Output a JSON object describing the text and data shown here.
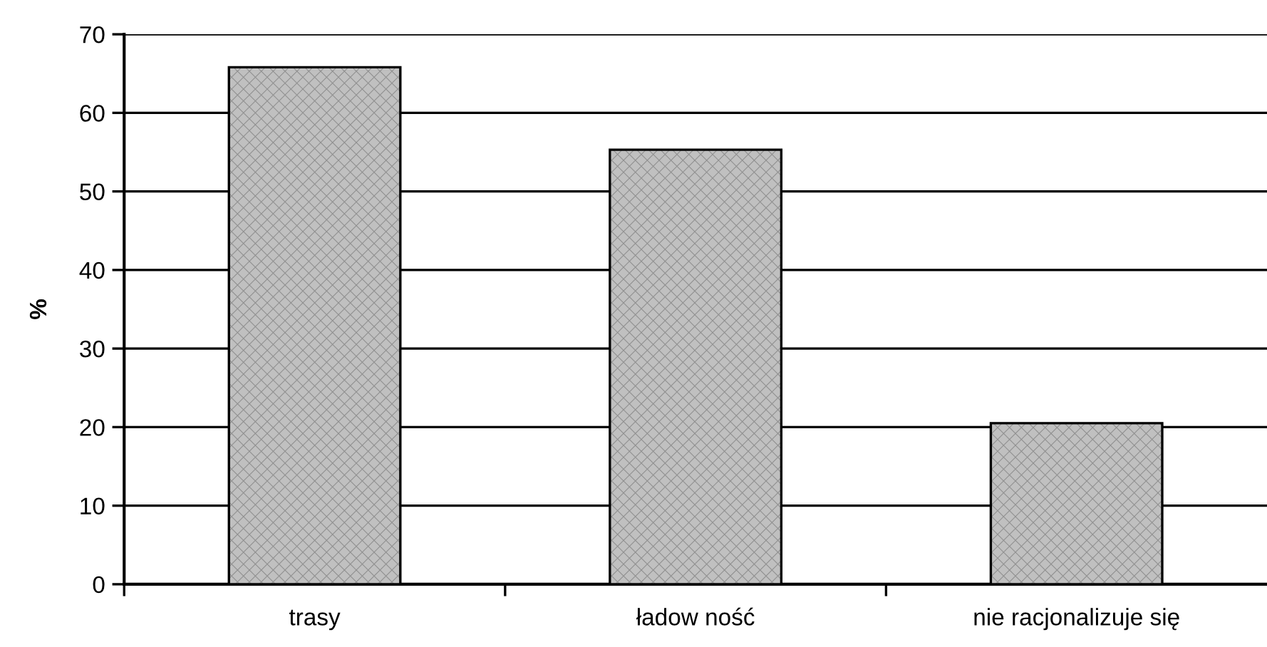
{
  "chart_data": {
    "type": "bar",
    "ylabel": "%",
    "categories": [
      "trasy",
      "ładow ność",
      "nie racjonalizuje się"
    ],
    "values": [
      65.8,
      55.3,
      20.5
    ],
    "color": "#c0c0c0",
    "ylim": [
      0,
      70
    ],
    "yticks": [
      0,
      10,
      20,
      30,
      40,
      50,
      60,
      70
    ],
    "grid": "y"
  }
}
